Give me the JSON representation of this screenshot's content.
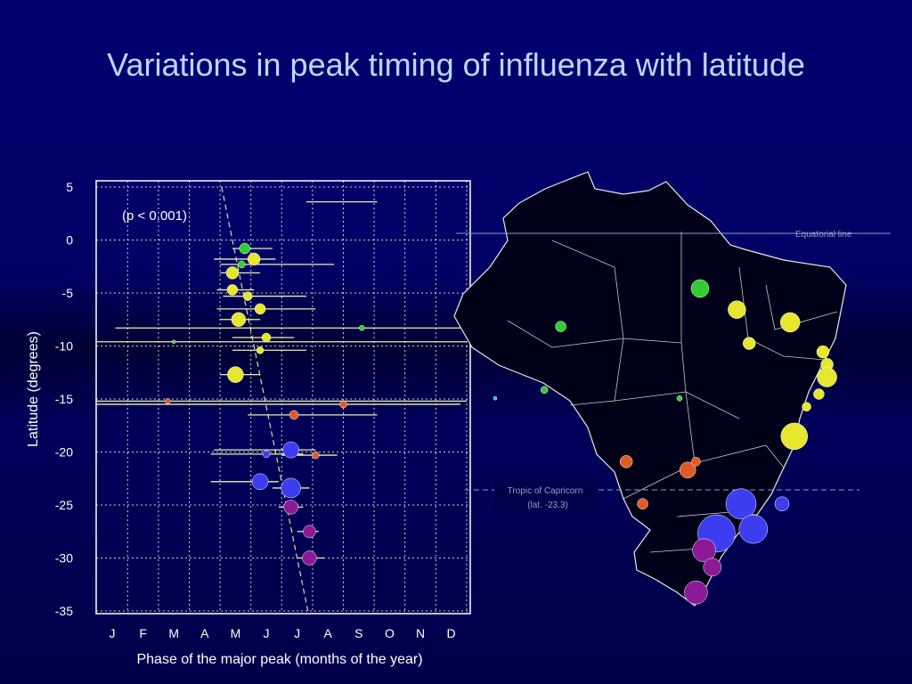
{
  "title": "Variations in peak timing of influenza with latitude",
  "chart_data": {
    "type": "scatter",
    "xlabel": "Phase of the major peak (months of the year)",
    "ylabel": "Latitude (degrees)",
    "x_tick_labels": [
      "J",
      "F",
      "M",
      "A",
      "M",
      "J",
      "J",
      "A",
      "S",
      "O",
      "N",
      "D"
    ],
    "y_ticks": [
      5,
      0,
      -5,
      -10,
      -15,
      -20,
      -25,
      -30,
      -35
    ],
    "xlim": [
      0.5,
      12.5
    ],
    "ylim": [
      -35,
      5
    ],
    "grid": true,
    "annotation": "(p < 0.001)",
    "trend_line": [
      [
        4.55,
        5
      ],
      [
        7.35,
        -35
      ]
    ],
    "points": [
      {
        "x": 5.3,
        "y": -0.8,
        "xerr": [
          4.9,
          6.2
        ],
        "size": 6,
        "color": "#33cc33"
      },
      {
        "x": 5.6,
        "y": -1.8,
        "xerr": [
          4.3,
          6.3
        ],
        "size": 7,
        "color": "#e6e62e"
      },
      {
        "x": 5.2,
        "y": -2.3,
        "xerr": [
          4.5,
          8.2
        ],
        "size": 4,
        "color": "#33cc33"
      },
      {
        "x": 4.9,
        "y": -3.1,
        "xerr": [
          4.5,
          5.8
        ],
        "size": 7,
        "color": "#e6e62e"
      },
      {
        "x": 4.9,
        "y": -4.7,
        "xerr": [
          4.4,
          5.6
        ],
        "size": 6,
        "color": "#e6e62e"
      },
      {
        "x": 5.4,
        "y": -5.3,
        "xerr": [
          4.6,
          7.3
        ],
        "size": 5,
        "color": "#e6e62e"
      },
      {
        "x": 5.8,
        "y": -6.5,
        "xerr": [
          4.4,
          7.6
        ],
        "size": 6,
        "color": "#e6e62e"
      },
      {
        "x": 5.1,
        "y": -7.5,
        "xerr": [
          4.5,
          5.8
        ],
        "size": 8,
        "color": "#e6e62e"
      },
      {
        "x": 9.1,
        "y": -8.3,
        "xerr": [
          1.1,
          12.3
        ],
        "size": 3,
        "color": "#33cc33"
      },
      {
        "x": 6.0,
        "y": -9.2,
        "xerr": [
          4.9,
          6.9
        ],
        "size": 5,
        "color": "#e6e62e"
      },
      {
        "x": 3.0,
        "y": -9.6,
        "xerr": [
          0.5,
          12.5
        ],
        "size": 2,
        "color": "#33cc33"
      },
      {
        "x": 5.8,
        "y": -10.4,
        "xerr": [
          4.9,
          7.3
        ],
        "size": 4,
        "color": "#e6e62e"
      },
      {
        "x": 5.0,
        "y": -12.7,
        "xerr": [
          4.5,
          5.8
        ],
        "size": 9,
        "color": "#e6e62e"
      },
      {
        "x": 2.8,
        "y": -15.2,
        "xerr": [
          0.5,
          12.5
        ],
        "size": 3,
        "color": "#e05a28"
      },
      {
        "x": 8.5,
        "y": -15.5,
        "xerr": [
          0.5,
          12.3
        ],
        "size": 4,
        "color": "#e05a28"
      },
      {
        "x": 6.9,
        "y": -16.5,
        "xerr": [
          5.4,
          9.6
        ],
        "size": 5,
        "color": "#e05a28"
      },
      {
        "x": 6.8,
        "y": -19.8,
        "xerr": [
          4.3,
          7.6
        ],
        "size": 9,
        "color": "#3c3cf0"
      },
      {
        "x": 6.0,
        "y": -20.2,
        "xerr": [
          4.2,
          7.2
        ],
        "size": 4,
        "color": "#3c3cf0"
      },
      {
        "x": 7.6,
        "y": -20.3,
        "xerr": [
          6.5,
          8.3
        ],
        "size": 4,
        "color": "#e05a28"
      },
      {
        "x": 5.8,
        "y": -22.8,
        "xerr": [
          4.2,
          6.4
        ],
        "size": 9,
        "color": "#3c3cf0"
      },
      {
        "x": 6.8,
        "y": -23.4,
        "xerr": [
          6.2,
          7.4
        ],
        "size": 11,
        "color": "#3c3cf0"
      },
      {
        "x": 6.8,
        "y": -25.2,
        "xerr": [
          6.4,
          7.2
        ],
        "size": 8,
        "color": "#8c1a96"
      },
      {
        "x": 7.4,
        "y": -27.5,
        "xerr": [
          7.0,
          7.7
        ],
        "size": 7,
        "color": "#8c1a96"
      },
      {
        "x": 7.4,
        "y": -30.0,
        "xerr": [
          7.0,
          7.9
        ],
        "size": 8,
        "color": "#8c1a96"
      },
      {
        "x": 7.8,
        "y": 3.6,
        "xerr": [
          7.3,
          9.6
        ],
        "size": 0,
        "color": "#e6e62e"
      }
    ]
  },
  "map": {
    "equator_label": "Equatorial line",
    "tropic_label_line1": "Tropic of Capricorn",
    "tropic_label_line2": "(lat. -23.3)",
    "markers": [
      {
        "lon": 0.26,
        "lat": 0.36,
        "size": 6,
        "color": "#33cc33"
      },
      {
        "lon": 0.6,
        "lat": 0.27,
        "size": 10,
        "color": "#33cc33"
      },
      {
        "lon": 0.22,
        "lat": 0.51,
        "size": 4,
        "color": "#33cc33"
      },
      {
        "lon": 0.55,
        "lat": 0.53,
        "size": 3,
        "color": "#33cc33"
      },
      {
        "lon": 0.1,
        "lat": 0.53,
        "size": 2,
        "color": "#33aaff"
      },
      {
        "lon": 0.69,
        "lat": 0.32,
        "size": 10,
        "color": "#e6e62e"
      },
      {
        "lon": 0.72,
        "lat": 0.4,
        "size": 7,
        "color": "#e6e62e"
      },
      {
        "lon": 0.82,
        "lat": 0.35,
        "size": 11,
        "color": "#e6e62e"
      },
      {
        "lon": 0.9,
        "lat": 0.42,
        "size": 7,
        "color": "#e6e62e"
      },
      {
        "lon": 0.91,
        "lat": 0.45,
        "size": 7,
        "color": "#e6e62e"
      },
      {
        "lon": 0.91,
        "lat": 0.48,
        "size": 11,
        "color": "#e6e62e"
      },
      {
        "lon": 0.89,
        "lat": 0.52,
        "size": 6,
        "color": "#e6e62e"
      },
      {
        "lon": 0.86,
        "lat": 0.55,
        "size": 5,
        "color": "#e6e62e"
      },
      {
        "lon": 0.83,
        "lat": 0.62,
        "size": 15,
        "color": "#e6e62e"
      },
      {
        "lon": 0.42,
        "lat": 0.68,
        "size": 7,
        "color": "#e05a28"
      },
      {
        "lon": 0.57,
        "lat": 0.7,
        "size": 9,
        "color": "#e05a28"
      },
      {
        "lon": 0.59,
        "lat": 0.68,
        "size": 5,
        "color": "#e05a28"
      },
      {
        "lon": 0.46,
        "lat": 0.78,
        "size": 6,
        "color": "#e05a28"
      },
      {
        "lon": 0.7,
        "lat": 0.78,
        "size": 17,
        "color": "#3c3cf0"
      },
      {
        "lon": 0.8,
        "lat": 0.78,
        "size": 8,
        "color": "#3c3cf0"
      },
      {
        "lon": 0.64,
        "lat": 0.85,
        "size": 21,
        "color": "#3c3cf0"
      },
      {
        "lon": 0.73,
        "lat": 0.84,
        "size": 16,
        "color": "#3c3cf0"
      },
      {
        "lon": 0.61,
        "lat": 0.89,
        "size": 13,
        "color": "#8c1a96"
      },
      {
        "lon": 0.63,
        "lat": 0.93,
        "size": 10,
        "color": "#8c1a96"
      },
      {
        "lon": 0.59,
        "lat": 0.99,
        "size": 13,
        "color": "#8c1a96"
      }
    ]
  }
}
